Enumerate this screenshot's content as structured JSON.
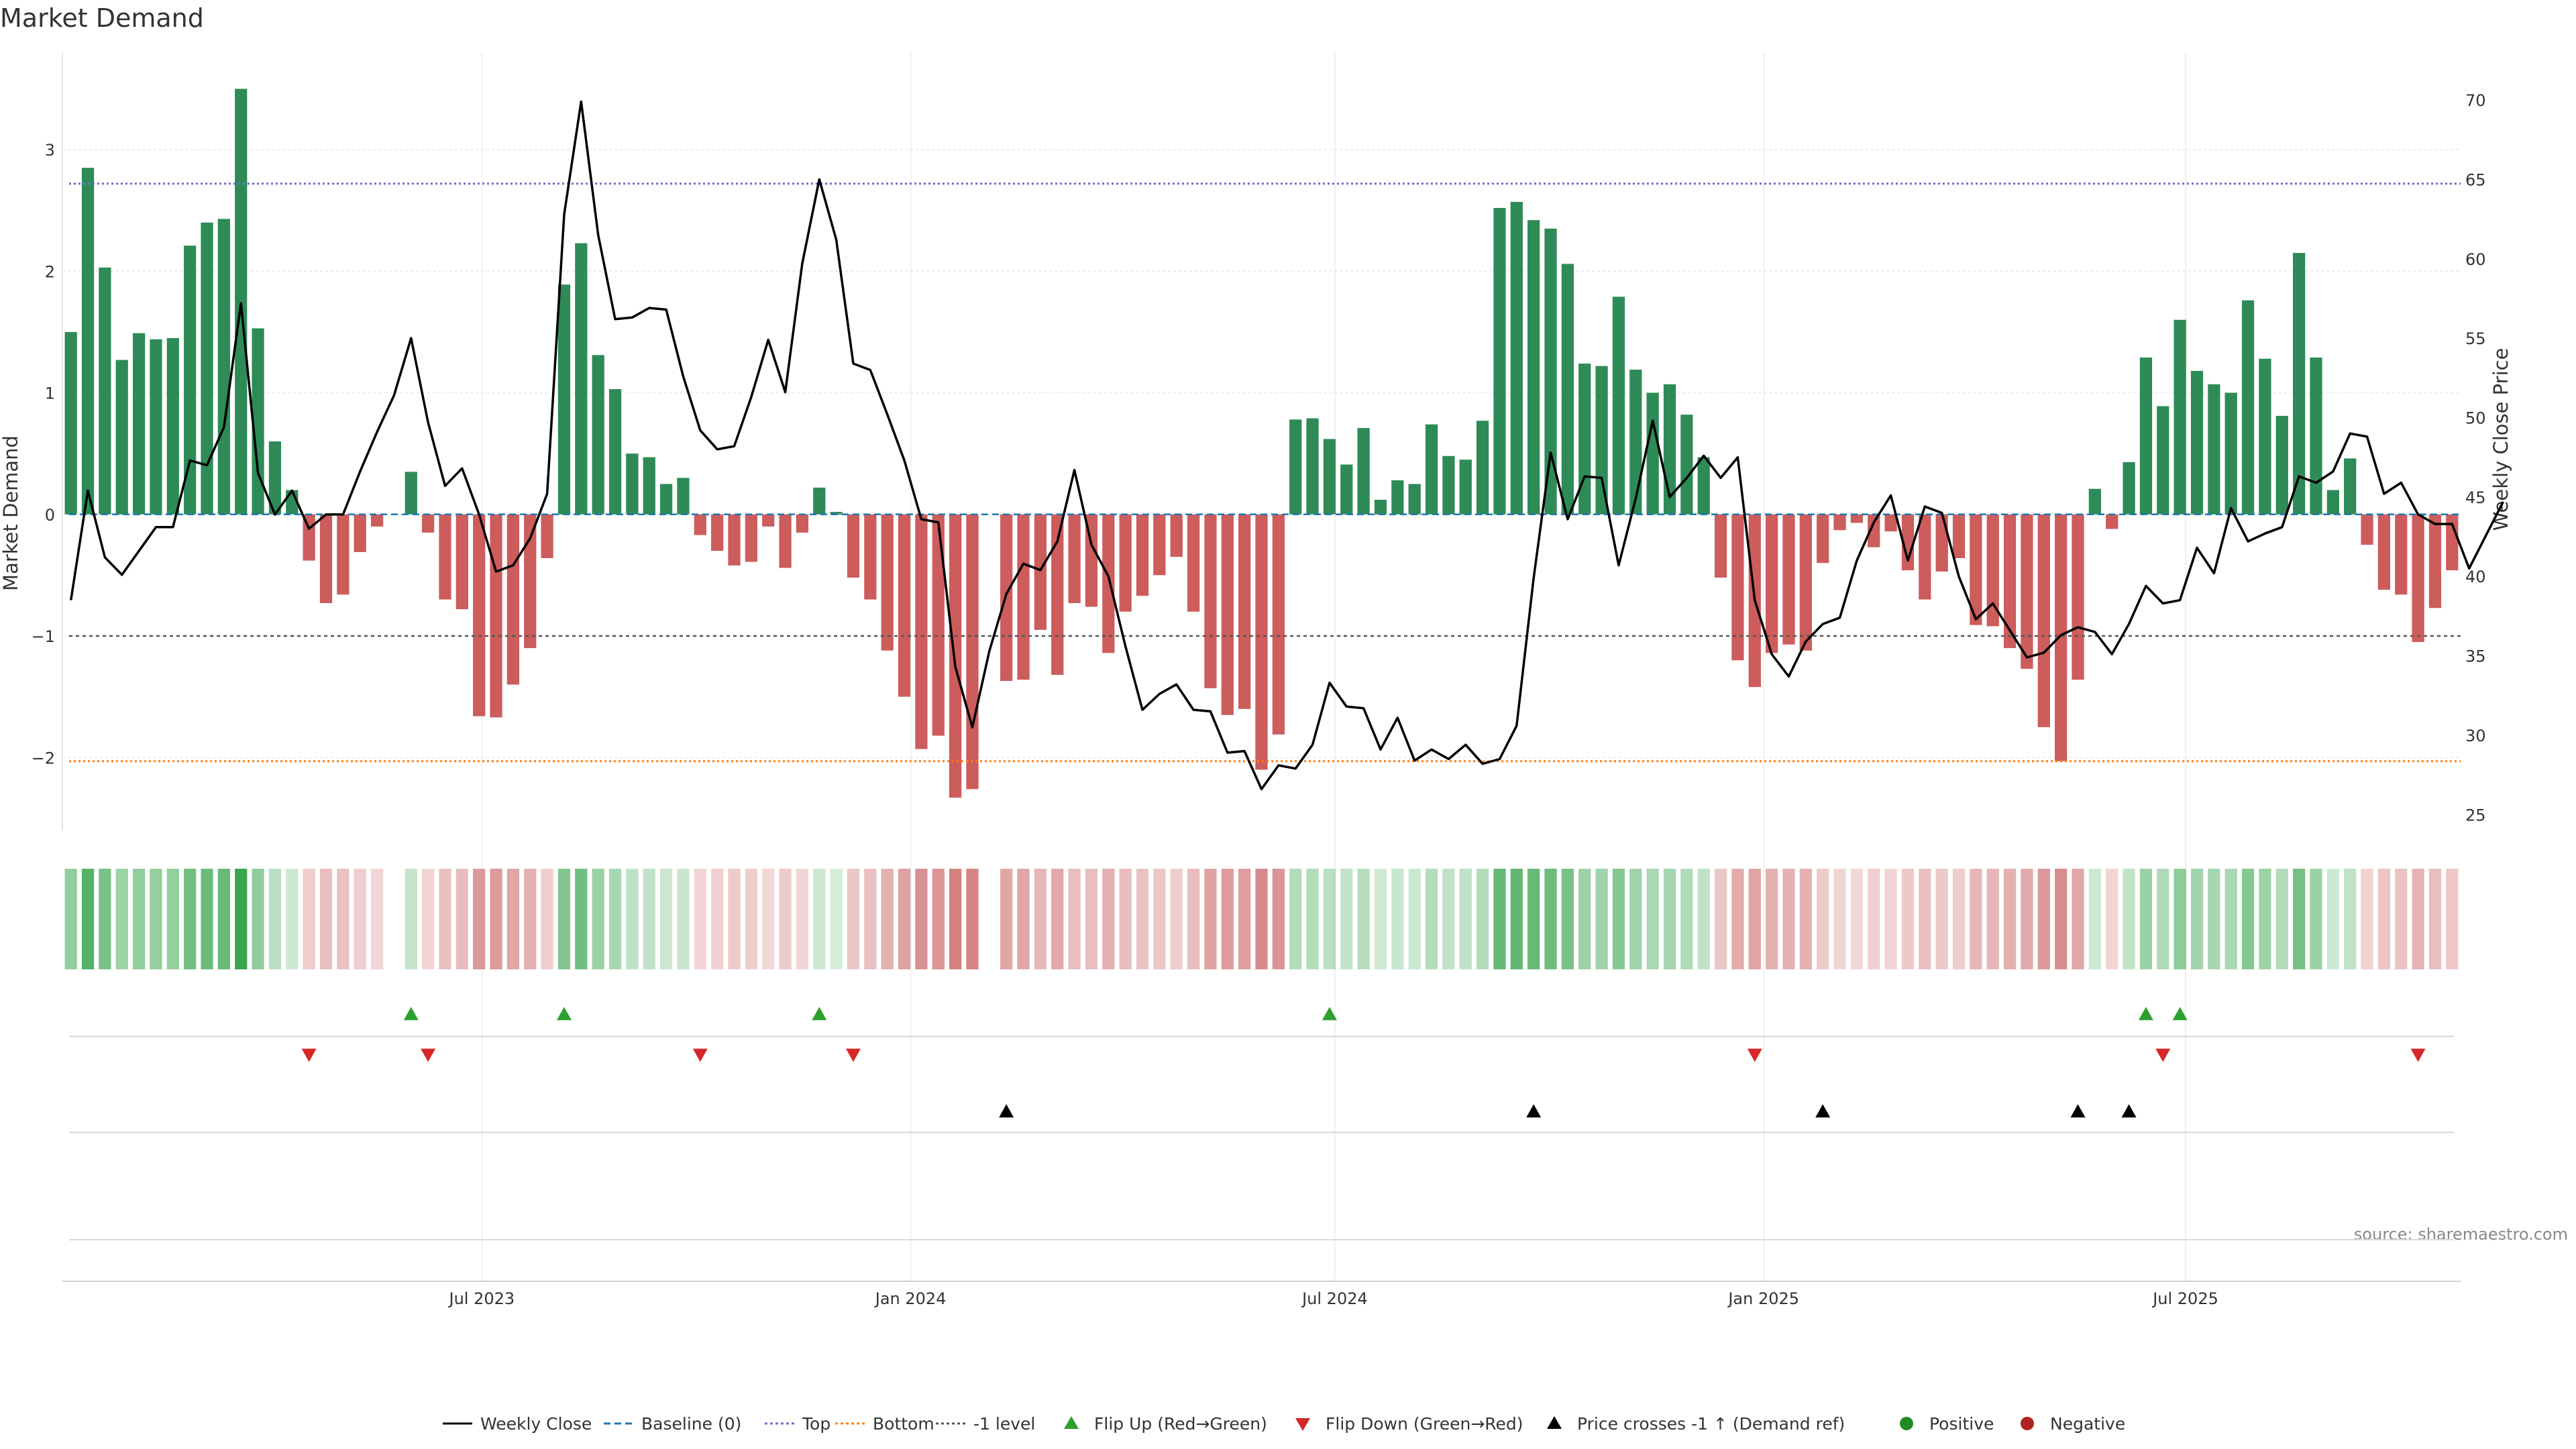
{
  "chart_data": {
    "type": "bar",
    "title": "Market Demand",
    "ylabel": "Market Demand",
    "y2label": "Weekly Close Price",
    "ylim": [
      -2.6,
      3.8
    ],
    "y2lim": [
      24,
      73
    ],
    "yticks": [
      -2,
      -1,
      0,
      1,
      2,
      3
    ],
    "yticklabels": [
      "−2",
      "−1",
      "0",
      "1",
      "2",
      "3"
    ],
    "y2ticks": [
      25,
      30,
      35,
      40,
      45,
      50,
      55,
      60,
      65,
      70
    ],
    "y2ticklabels": [
      "25",
      "30",
      "35",
      "40",
      "45",
      "50",
      "55",
      "60",
      "65",
      "70"
    ],
    "x_start": "2023-01-02",
    "x_end": "2025-10-27",
    "xticks": [
      "2023-07-01",
      "2024-01-01",
      "2024-07-01",
      "2025-01-01",
      "2025-07-01"
    ],
    "xticklabels": [
      "Jul 2023",
      "Jan 2024",
      "Jul 2024",
      "Jan 2025",
      "Jul 2025"
    ],
    "reference_lines": {
      "baseline": 0,
      "top": 2.72,
      "bottom": -2.03,
      "minus_one": -1
    },
    "series": [
      {
        "name": "Market Demand",
        "kind": "bar",
        "values": [
          1.5,
          2.85,
          2.03,
          1.27,
          1.49,
          1.44,
          1.45,
          2.21,
          2.4,
          2.43,
          3.5,
          1.53,
          0.6,
          0.2,
          -0.38,
          -0.73,
          -0.66,
          -0.31,
          -0.1,
          0,
          0.35,
          -0.15,
          -0.7,
          -0.78,
          -1.66,
          -1.67,
          -1.4,
          -1.1,
          -0.36,
          1.89,
          2.23,
          1.31,
          1.03,
          0.5,
          0.47,
          0.25,
          0.3,
          -0.17,
          -0.3,
          -0.42,
          -0.39,
          -0.1,
          -0.44,
          -0.15,
          0.22,
          0.02,
          -0.52,
          -0.7,
          -1.12,
          -1.5,
          -1.93,
          -1.82,
          -2.33,
          -2.26,
          0,
          -1.37,
          -1.36,
          -0.95,
          -1.32,
          -0.73,
          -0.76,
          -1.14,
          -0.8,
          -0.67,
          -0.5,
          -0.35,
          -0.8,
          -1.43,
          -1.65,
          -1.6,
          -2.1,
          -1.81,
          0.78,
          0.79,
          0.62,
          0.41,
          0.71,
          0.12,
          0.28,
          0.25,
          0.74,
          0.48,
          0.45,
          0.77,
          2.52,
          2.57,
          2.42,
          2.35,
          2.06,
          1.24,
          1.22,
          1.79,
          1.19,
          1.0,
          1.07,
          0.82,
          0.47,
          -0.52,
          -1.2,
          -1.42,
          -1.14,
          -1.07,
          -1.12,
          -0.4,
          -0.13,
          -0.07,
          -0.27,
          -0.14,
          -0.46,
          -0.7,
          -0.47,
          -0.36,
          -0.91,
          -0.92,
          -1.1,
          -1.27,
          -1.75,
          -2.03,
          -1.36,
          0.21,
          -0.12,
          0.43,
          1.29,
          0.89,
          1.6,
          1.18,
          1.07,
          1.0,
          1.76,
          1.28,
          0.81,
          2.15,
          1.29,
          0.2,
          0.46,
          -0.25,
          -0.62,
          -0.66,
          -1.05,
          -0.77,
          -0.46
        ]
      },
      {
        "name": "Weekly Close",
        "kind": "line",
        "color": "#000000",
        "values": [
          38.5,
          45.4,
          41.2,
          40.1,
          41.6,
          43.1,
          43.1,
          47.3,
          47.0,
          49.4,
          57.2,
          46.5,
          43.9,
          45.4,
          43.0,
          43.9,
          43.9,
          46.6,
          49.1,
          51.4,
          55.0,
          49.7,
          45.7,
          46.8,
          43.9,
          40.3,
          40.7,
          42.4,
          45.2,
          62.8,
          69.9,
          61.5,
          56.2,
          56.3,
          56.9,
          56.8,
          52.6,
          49.2,
          48.0,
          48.2,
          51.3,
          54.9,
          51.6,
          59.7,
          65.0,
          61.2,
          53.4,
          53.0,
          50.2,
          47.3,
          43.6,
          43.4,
          34.3,
          30.5,
          35.3,
          38.9,
          40.8,
          40.4,
          42.2,
          46.7,
          42.0,
          40.0,
          35.6,
          31.6,
          32.6,
          33.2,
          31.6,
          31.5,
          28.9,
          29.0,
          26.6,
          28.1,
          27.9,
          29.4,
          33.3,
          31.8,
          31.7,
          29.1,
          31.1,
          28.4,
          29.1,
          28.5,
          29.4,
          28.2,
          28.5,
          30.6,
          39.9,
          47.8,
          43.6,
          46.3,
          46.2,
          40.7,
          44.9,
          49.8,
          45.0,
          46.2,
          47.6,
          46.2,
          47.5,
          38.5,
          35.1,
          33.7,
          35.9,
          37.0,
          37.4,
          41.0,
          43.4,
          45.1,
          41.0,
          44.4,
          44.0,
          40.0,
          37.3,
          38.3,
          36.6,
          34.9,
          35.2,
          36.3,
          36.8,
          36.5,
          35.1,
          37.0,
          39.4,
          38.3,
          38.5,
          41.8,
          40.2,
          44.3,
          42.2,
          42.7,
          43.1,
          46.3,
          45.9,
          46.6,
          49.0,
          48.8,
          45.2,
          45.9,
          43.9,
          43.3,
          43.3,
          40.5,
          42.6,
          44.7
        ]
      }
    ],
    "heat_strip": {
      "label": "",
      "note": "one cell per week coloured by demand sign and strength"
    },
    "event_rows": [
      {
        "name": "Flip Up (Red→Green)",
        "marker": "triangle-up",
        "color": "#2ca02c",
        "weeks": [
          20,
          29,
          44,
          74,
          122,
          124
        ]
      },
      {
        "name": "Flip Down (Green→Red)",
        "marker": "triangle-down",
        "color": "#d62728",
        "weeks": [
          14,
          21,
          37,
          46,
          99,
          123,
          138
        ]
      },
      {
        "name": "Price crosses -1 ↑ (Demand ref)",
        "marker": "triangle-up",
        "color": "#000000",
        "weeks": [
          55,
          86,
          103,
          118,
          121
        ]
      }
    ],
    "legend": {
      "position": "bottom-center",
      "items": [
        {
          "label": "Weekly Close",
          "style": "line-solid",
          "color": "#000000"
        },
        {
          "label": "Baseline (0)",
          "style": "line-dashed",
          "color": "#1f77b4"
        },
        {
          "label": "Top",
          "style": "line-dotted",
          "color": "#6a6fc8"
        },
        {
          "label": "Bottom",
          "style": "line-dotted",
          "color": "#ff7f0e"
        },
        {
          "label": "-1 level",
          "style": "line-dotted",
          "color": "#555555"
        },
        {
          "label": "Flip Up (Red→Green)",
          "style": "triangle-up",
          "color": "#2ca02c"
        },
        {
          "label": "Flip Down (Green→Red)",
          "style": "triangle-down",
          "color": "#d62728"
        },
        {
          "label": "Price crosses -1 ↑ (Demand ref)",
          "style": "triangle-up",
          "color": "#000000"
        },
        {
          "label": "Positive",
          "style": "circle",
          "color": "#228b22"
        },
        {
          "label": "Negative",
          "style": "circle",
          "color": "#b22222"
        }
      ]
    },
    "source": "source: sharemaestro.com",
    "colors": {
      "positive_bar": "#2e8b57",
      "negative_bar": "#cd5c5c",
      "grid": "#e6e6e6"
    }
  }
}
